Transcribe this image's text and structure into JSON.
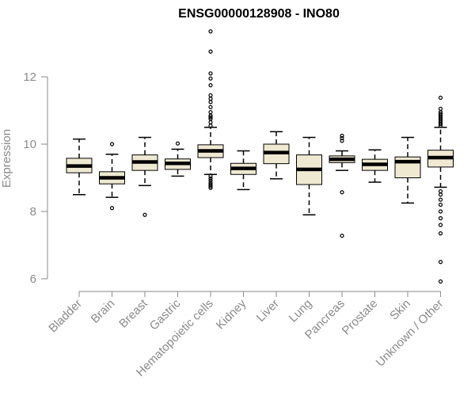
{
  "chart_data": {
    "type": "boxplot",
    "title": "ENSG00000128908 - INO80",
    "xlabel": "",
    "ylabel": "Expression",
    "ylim": [
      5.9,
      13.4
    ],
    "yticks": [
      6,
      8,
      10,
      12
    ],
    "grid": false,
    "legend": "none",
    "colors": {
      "box_fill": "#efe9d2",
      "line": "#000000",
      "axis": "#8a8a8a"
    },
    "categories": [
      "Bladder",
      "Brain",
      "Breast",
      "Gastric",
      "Hematopoietic cells",
      "Kidney",
      "Liver",
      "Lung",
      "Pancreas",
      "Prostate",
      "Skin",
      "Unknown / Other"
    ],
    "boxes": [
      {
        "category": "Bladder",
        "whisker_low": 8.5,
        "q1": 9.15,
        "median": 9.35,
        "q3": 9.58,
        "whisker_high": 10.15,
        "outliers": []
      },
      {
        "category": "Brain",
        "whisker_low": 8.42,
        "q1": 8.82,
        "median": 9.0,
        "q3": 9.18,
        "whisker_high": 9.7,
        "outliers": [
          8.1,
          10.0
        ]
      },
      {
        "category": "Breast",
        "whisker_low": 8.77,
        "q1": 9.22,
        "median": 9.47,
        "q3": 9.68,
        "whisker_high": 10.2,
        "outliers": [
          7.9
        ]
      },
      {
        "category": "Gastric",
        "whisker_low": 9.05,
        "q1": 9.25,
        "median": 9.43,
        "q3": 9.56,
        "whisker_high": 9.85,
        "outliers": [
          10.02
        ]
      },
      {
        "category": "Hematopoietic cells",
        "whisker_low": 9.1,
        "q1": 9.6,
        "median": 9.8,
        "q3": 9.98,
        "whisker_high": 10.5,
        "outliers": [
          13.35,
          12.75,
          12.1,
          11.95,
          11.75,
          11.45,
          11.35,
          11.25,
          11.1,
          10.95,
          10.85,
          10.8,
          10.75,
          10.65,
          10.55,
          9.05,
          8.98,
          8.92,
          8.85,
          8.8,
          8.75,
          8.7
        ]
      },
      {
        "category": "Kidney",
        "whisker_low": 8.65,
        "q1": 9.1,
        "median": 9.28,
        "q3": 9.43,
        "whisker_high": 9.8,
        "outliers": []
      },
      {
        "category": "Liver",
        "whisker_low": 8.97,
        "q1": 9.42,
        "median": 9.75,
        "q3": 10.0,
        "whisker_high": 10.37,
        "outliers": []
      },
      {
        "category": "Lung",
        "whisker_low": 7.9,
        "q1": 8.8,
        "median": 9.25,
        "q3": 9.68,
        "whisker_high": 10.2,
        "outliers": []
      },
      {
        "category": "Pancreas",
        "whisker_low": 9.22,
        "q1": 9.45,
        "median": 9.55,
        "q3": 9.65,
        "whisker_high": 9.8,
        "outliers": [
          10.25,
          10.18,
          10.1,
          8.57,
          7.28
        ]
      },
      {
        "category": "Prostate",
        "whisker_low": 8.87,
        "q1": 9.22,
        "median": 9.4,
        "q3": 9.55,
        "whisker_high": 9.83,
        "outliers": []
      },
      {
        "category": "Skin",
        "whisker_low": 8.25,
        "q1": 9.0,
        "median": 9.48,
        "q3": 9.62,
        "whisker_high": 10.2,
        "outliers": []
      },
      {
        "category": "Unknown / Other",
        "whisker_low": 8.72,
        "q1": 9.32,
        "median": 9.6,
        "q3": 9.82,
        "whisker_high": 10.5,
        "outliers": [
          11.38,
          11.05,
          10.95,
          10.9,
          10.85,
          10.8,
          10.75,
          10.7,
          10.65,
          10.6,
          10.55,
          8.6,
          8.5,
          8.35,
          8.2,
          8.0,
          7.8,
          7.6,
          7.35,
          6.5,
          5.92
        ]
      }
    ]
  }
}
